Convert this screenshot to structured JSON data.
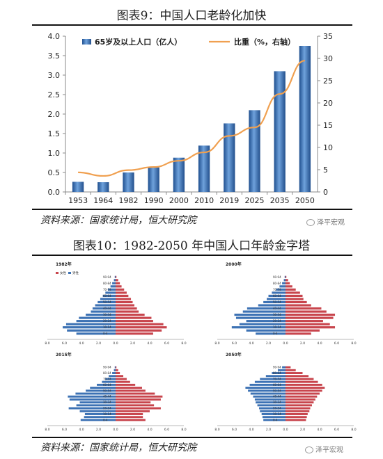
{
  "header": {
    "title": "图表9：中国人口老龄化加快"
  },
  "footer": {
    "source": "资料来源：国家统计局，恒大研究院",
    "watermark": "泽平宏观"
  },
  "pyramid_section": {
    "title": "图表10：1982-2050 年中国人口年龄金字塔",
    "source": "资料来源：国家统计局，恒大研究院",
    "watermark": "泽平宏观"
  },
  "colors": {
    "bar": "#3d72b4",
    "line": "#f0a050",
    "female": "#c8454d",
    "male": "#3d72b4"
  },
  "chart_data": [
    {
      "type": "bar",
      "categories": [
        "1953",
        "1964",
        "1982",
        "1990",
        "2000",
        "2010",
        "2019",
        "2025",
        "2035",
        "2050"
      ],
      "series": [
        {
          "name": "65岁及以上人口（亿人）",
          "type": "bar",
          "axis": "left",
          "values": [
            0.26,
            0.25,
            0.5,
            0.63,
            0.88,
            1.19,
            1.76,
            2.1,
            3.1,
            3.75
          ]
        },
        {
          "name": "比重（%，右轴）",
          "type": "line",
          "axis": "right",
          "values": [
            4.4,
            3.6,
            4.9,
            5.6,
            7.0,
            8.9,
            12.6,
            14.5,
            22.0,
            29.5
          ]
        }
      ],
      "y_left": {
        "min": 0,
        "max": 4.0,
        "ticks": [
          "0.0",
          "0.5",
          "1.0",
          "1.5",
          "2.0",
          "2.5",
          "3.0",
          "3.5",
          "4.0"
        ]
      },
      "y_right": {
        "min": 0,
        "max": 35,
        "ticks": [
          "0",
          "5",
          "10",
          "15",
          "20",
          "25",
          "30",
          "35"
        ]
      },
      "legend_position": "top"
    },
    {
      "type": "bar",
      "subtype": "population-pyramid",
      "legend": [
        "女性",
        "男性"
      ],
      "x_ticks": [
        "8.0",
        "6.0",
        "4.0",
        "2.0",
        "0.0",
        "2.0",
        "4.0",
        "6.0",
        "8.0"
      ],
      "panels": [
        {
          "year": "1982年",
          "male": [
            4.6,
            5.7,
            6.2,
            5.8,
            4.6,
            4.3,
            3.5,
            2.9,
            2.7,
            2.4,
            2.1,
            1.8,
            1.5,
            1.2,
            0.9,
            0.6,
            0.4,
            0.2,
            0.1
          ],
          "female": [
            4.4,
            5.4,
            6.0,
            5.6,
            4.4,
            4.2,
            3.4,
            2.7,
            2.5,
            2.2,
            2.0,
            1.8,
            1.5,
            1.3,
            1.0,
            0.7,
            0.5,
            0.3,
            0.1
          ],
          "age_labels": [
            "0-4",
            "10-14",
            "20-24",
            "30-34",
            "40-44",
            "50-54",
            "60-64",
            "70-74",
            "80-84",
            "90-94"
          ]
        },
        {
          "year": "2000年",
          "male": [
            3.5,
            4.6,
            6.3,
            5.4,
            4.6,
            5.8,
            6.0,
            5.0,
            4.5,
            3.2,
            2.6,
            2.2,
            2.0,
            1.6,
            1.1,
            0.7,
            0.4,
            0.2,
            0.1
          ],
          "female": [
            3.0,
            4.0,
            5.8,
            5.2,
            4.4,
            5.6,
            5.8,
            4.8,
            4.2,
            3.0,
            2.5,
            2.1,
            2.0,
            1.7,
            1.2,
            0.8,
            0.5,
            0.3,
            0.1
          ],
          "age_labels": [
            "0-4",
            "10-14",
            "20-24",
            "30-34",
            "40-44",
            "50-54",
            "60-64",
            "70-74",
            "80-84",
            "90-94"
          ]
        },
        {
          "year": "2015年",
          "male": [
            4.1,
            3.7,
            3.6,
            4.2,
            5.5,
            4.6,
            4.2,
            5.4,
            5.6,
            4.7,
            3.5,
            3.0,
            2.2,
            1.6,
            1.2,
            0.8,
            0.4,
            0.2,
            0.1
          ],
          "female": [
            3.5,
            3.2,
            3.2,
            4.0,
            5.3,
            4.5,
            4.1,
            5.3,
            5.5,
            4.6,
            3.5,
            3.1,
            2.3,
            1.7,
            1.3,
            0.9,
            0.5,
            0.3,
            0.1
          ],
          "age_labels": [
            "0-4",
            "10-14",
            "20-24",
            "30-34",
            "40-44",
            "50-54",
            "60-64",
            "70-74",
            "80-84",
            "90-94"
          ]
        },
        {
          "year": "2050年",
          "male": [
            2.6,
            2.7,
            2.8,
            3.0,
            3.1,
            3.3,
            3.5,
            3.6,
            3.8,
            4.1,
            4.4,
            4.7,
            4.2,
            3.6,
            3.0,
            2.3,
            1.6,
            0.9,
            0.4
          ],
          "female": [
            2.4,
            2.5,
            2.6,
            2.8,
            2.9,
            3.1,
            3.3,
            3.5,
            3.7,
            4.0,
            4.3,
            4.6,
            4.3,
            3.8,
            3.3,
            2.7,
            2.0,
            1.2,
            0.6
          ],
          "age_labels": [
            "0-4",
            "10-14",
            "20-24",
            "30-34",
            "40-44",
            "50-54",
            "60-64",
            "70-74",
            "80-84",
            "90-94"
          ]
        }
      ]
    }
  ]
}
